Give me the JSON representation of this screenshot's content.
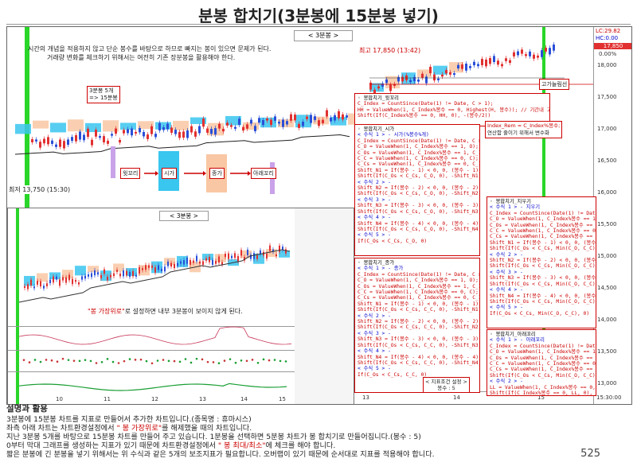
{
  "page_title": "분봉 합치기(3분봉에 15분봉 넣기)",
  "main_chart": {
    "header_label": "< 3분봉 >",
    "note_line1": "시간의 개념을 적용하지 않고 단순 봉수를 바탕으로 하므로 빠지는 봉이 있으면 문제가 된다.",
    "note_line2": "거래량 변화를 체크하기 위해서는 여전히 기존 장분봉을 활용해야 한다.",
    "high_label": "최고 17,850 (13:42)",
    "low_label": "최저 13,750 (15:30)",
    "bar5_label1": "3분봉 5개",
    "bar5_label2": "=> 15분봉",
    "high_line_label": "고가늘림선",
    "price_axis": [
      "18,000",
      "17,500",
      "17,000",
      "16,500",
      "16,000",
      "15,500",
      "15,000",
      "14,500",
      "14,000",
      "13,500",
      "13,000"
    ],
    "price_lc": "LC:29.82",
    "price_hc": "HC:0.00",
    "current_price": "17,850",
    "current_change": "0.00%",
    "time_axis": [
      "13",
      "14",
      "15",
      "15:30:00"
    ],
    "flow": [
      "윗꼬리",
      "시가",
      "종가",
      "아래꼬리"
    ]
  },
  "inset_chart": {
    "header_label": "< 3분봉 >",
    "setting_note_prefix": "\"봉 가장위로\"",
    "setting_note_suffix": "로 설정하면 내부 3분봉이 보이지 않게 된다.",
    "time_axis": [
      "10",
      "11",
      "12",
      "13",
      "14",
      "15"
    ]
  },
  "code_box_1": {
    "title": "◦ 봉합치기_윗꼬리",
    "lines": [
      "C_Index = CountSince(Date(1) != Date, C > 1);",
      "HH = ValueWhen(1, C_Index%봉수 == 0, Highest(H, 봉수)); // 기간내 고가",
      "Shift(If(C_Index%봉수 == 0, HH, 0), -(봉수/2))"
    ]
  },
  "code_box_2": {
    "title": "◦ 봉합치기_시가",
    "lines": [
      "< 수식 1 > - 시가(%봉수%개)",
      "C_Index = CountSince(Date(1) != Date, C > 1);",
      "C_O = ValueWhen(1, C_Index%봉수 == 1, O); // 시가 정보",
      "C_Os = ValueWhen(1, C_Index%봉수 == 1, C_Index);",
      "C_C = ValueWhen(1, C_Index%봉수 == 0, C); // 종가 정보",
      "C_Cs = ValueWhen(1, C_Index%봉수 == 0, C_Index);",
      "Shift_N1 = If(봉수 - 1) < 0, 0, (봉수 - 1));",
      "Shift(If(C_Os < C_Cs, C_O, 0), -Shift_N1)",
      "< 수식 2 > -",
      "Shift_N2 = If(봉수 - 2) < 0, 0, (봉수 - 2));",
      "Shift(If(C_Os < C_Cs, C_O, 0), -Shift_N2)",
      "< 수식 3 > -",
      "Shift_N3 = If(봉수 - 3) < 0, 0, (봉수 - 3));",
      "Shift(If(C_Os < C_Cs, C_O, 0), -Shift_N3)",
      "< 수식 4 > -",
      "Shift_N4 = If(봉수 - 4) < 0, 0, (봉수 - 4));",
      "Shift(If(C_Os < C_Cs, C_O, 0), -Shift_N4)",
      "< 수식 5 > -",
      "If(C_Os < C_Cs, C_O, 0)"
    ]
  },
  "code_box_3": {
    "title": "◦ 봉합치기_종가",
    "lines": [
      "< 수식 1 > - 종가",
      "C_Index = CountSince(Date(1) != Date, C > 1);",
      "C_O = ValueWhen(1, C_Index%봉수 == 1, O);",
      "C_Os = ValueWhen(1, C_Index%봉수 == 1, C_Index);",
      "C_C = ValueWhen(1, C_Index%봉수 == 0, C);",
      "C_Cs = ValueWhen(1, C_Index%봉수 == 0, C_Index);",
      "Shift_N1 = If(봉수 - 1) < 0, 0, (봉수 - 1));",
      "Shift(If(C_Os < C_Cs, C_C, 0), -Shift_N1)",
      "< 수식 2 > -",
      "Shift_N2 = If(봉수 - 2) < 0, 0, (봉수 - 2));",
      "Shift(If(C_Os < C_Cs, C_C, 0), -Shift_N2)",
      "< 수식 3 > -",
      "Shift_N3 = If(봉수 - 3) < 0, 0, (봉수 - 3));",
      "Shift(If(C_Os < C_Cs, C_C, 0), -Shift_N3)",
      "< 수식 4 > -",
      "Shift_N4 = If(봉수 - 4) < 0, 0, (봉수 - 4));",
      "Shift(If(C_Os < C_Cs, C_C, 0), -Shift_N4)",
      "< 수식 5 > -",
      "If(C_Os < C_Cs, C_C, 0)"
    ]
  },
  "code_box_4": {
    "title": "◦ 봉합치기_지우기",
    "lines": [
      "< 수식 1 > - 지우기",
      "C_Index = CountSince(Date(1) != Date, C > 1);",
      "C_O = ValueWhen(1, C_Index%봉수 == 1, O);",
      "C_Os = ValueWhen(1, C_Index%봉수 == 1, C_Index);",
      "C_C = ValueWhen(1, C_Index%봉수 == 0, C);",
      "C_Cs = ValueWhen(1, C_Index%봉수 == 0, C_Index);",
      "Shift_N1 = If(봉수 - 1) < 0, 0, (봉수 - 1));",
      "Shift(If(C_Os < C_Cs, Min(C_O, C_C), 0), -Shift_N1)",
      "< 수식 2 > -",
      "Shift_N2 = If(봉수 - 2) < 0, 0, (봉수 - 2));",
      "Shift(If(C_Os < C_Cs, Min(C_O, C_C), 0), -Shift_N2)",
      "< 수식 3 > -",
      "Shift_N3 = If(봉수 - 3) < 0, 0, (봉수 - 3));",
      "Shift(If(C_Os < C_Cs, Min(C_O, C_C), 0), -Shift_N3)",
      "< 수식 4 > -",
      "Shift_N4 = If(봉수 - 4) < 0, 0, (봉수 - 4));",
      "Shift(If(C_Os < C_Cs, Min(C_O, C_C), 0), -Shift_N4)",
      "< 수식 5 > -",
      "If(C_Os < C_Cs, Min(C_O, C_C), 0)"
    ]
  },
  "code_box_5": {
    "title": "◦ 봉합치기_아래꼬리",
    "lines": [
      "< 수식 1 > - 아래꼬리",
      "C_Index = CountSince(Date(1) != Date, C > 1);",
      "C_O = ValueWhen(1, C_Index%봉수 == 1, O);",
      "C_Os = ValueWhen(1, C_Index%봉수 == 1, C_Index);",
      "C_C = ValueWhen(1, C_Index%봉수 == 0, C);",
      "C_Cs = ValueWhen(1, C_Index%봉수 == 0, C_Index);",
      "Shift(If(C_Os < C_Cs, Min(C_O, C_C), 0), -Shift_N1)",
      "< 수식 2 > -",
      "LL = ValueWhen(1, C_Index%봉수 == 0, Lowest(L, 봉수));",
      "Shift(If(C_Index%봉수 == 0, LL, 0), -(봉수/2))"
    ]
  },
  "index_rem_label1": "Index_Rem = C_Index%봉수;",
  "index_rem_label2": "연산함 줄이기 위해서 변수화",
  "indicator_condition_label1": "< 지표조건 설정 >",
  "indicator_condition_label2": "봉수 : 5",
  "explain": {
    "heading": "설명과 활용",
    "line1": "3분봉에 15분봉 차트를 지표로 만들어서 추가한 차트입니다.(종목명 : 휴마시스)",
    "line2_prefix": "좌측 아래 차트는 차트환경설정에서 ",
    "line2_red": "\" 봉 가장위로\"",
    "line2_suffix": "를 해제했을 때의 차트입니다.",
    "line3": "지난 3분봉 5개를 바탕으로 15분봉 차트를 만들어 주고 있습니다. 1분봉을 선택하면 5분봉 차트가 봉 합치기로 만들어집니다.(봉수 : 5)",
    "line4_prefix": "0부터 막대 그래프를 생성하는 지표가 있기 때문에 차트환경설정에서 ",
    "line4_red": "\" 봉 최대/최소\"",
    "line4_suffix": "에 체크를 해야 합니다.",
    "line5": "짧은 분봉에 긴 분봉을 넣기 위해서는 위 수식과 같은 5개의 보조지표가 필요합니다. 오버랩이 있기 때문에 순서대로 지표를 적용해야 합니다."
  },
  "page_number": "525",
  "colors": {
    "up": "#e23030",
    "down": "#2a4fd8",
    "cyan": "#39c6ef",
    "peach": "#f9c7a3",
    "violet": "#c9a2ea",
    "green": "#29d629"
  }
}
